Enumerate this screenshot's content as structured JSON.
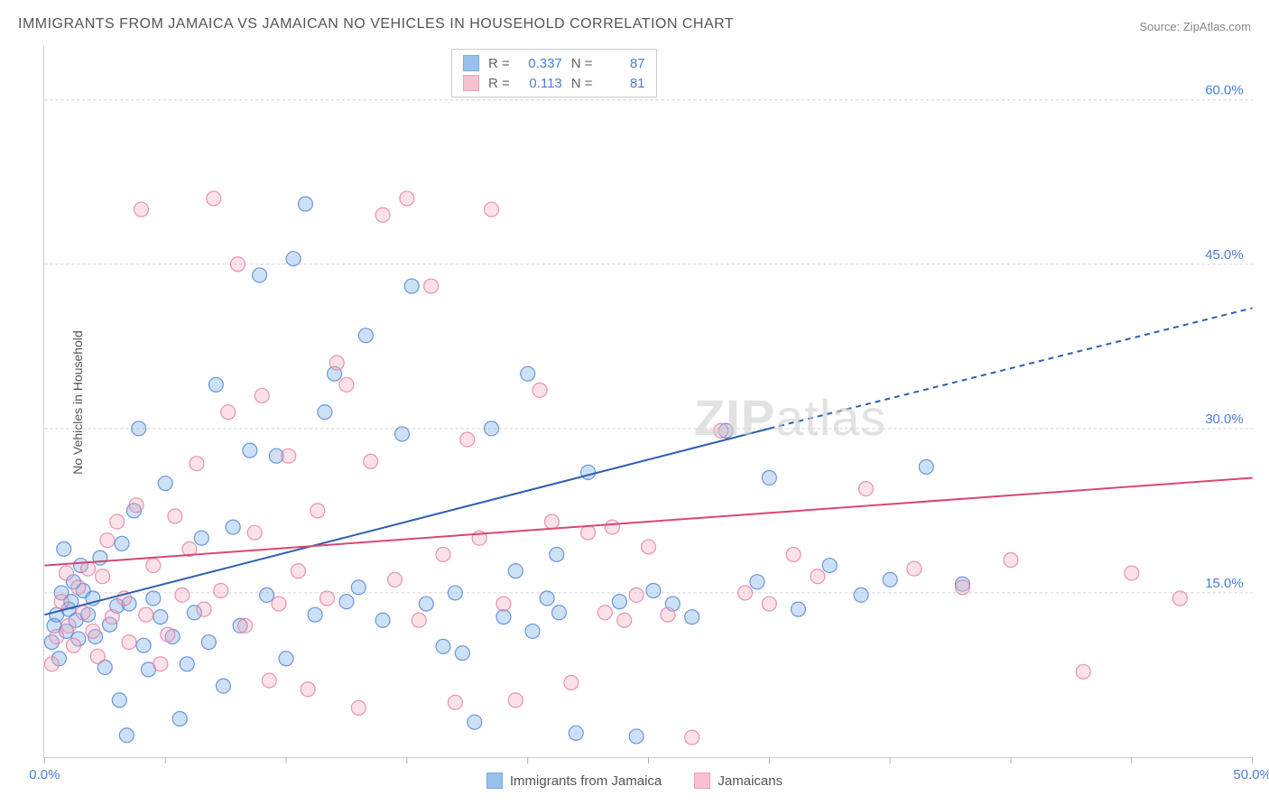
{
  "title": "IMMIGRANTS FROM JAMAICA VS JAMAICAN NO VEHICLES IN HOUSEHOLD CORRELATION CHART",
  "source_prefix": "Source: ",
  "source_name": "ZipAtlas.com",
  "ylabel": "No Vehicles in Household",
  "watermark_bold": "ZIP",
  "watermark_rest": "atlas",
  "chart": {
    "type": "scatter",
    "xlim": [
      0,
      50
    ],
    "ylim": [
      0,
      65
    ],
    "xtick_step": 5,
    "xtick_labeled": [
      0,
      50
    ],
    "ytick_step": 15,
    "ytick_labeled": [
      15,
      30,
      45,
      60
    ],
    "background_color": "#ffffff",
    "grid_color": "#d0d0d0",
    "grid_dash": "3,3",
    "tick_color": "#b0b0b0",
    "axis_label_color": "#4a7fd8",
    "axis_label_fontsize": 15,
    "title_color": "#555555",
    "title_fontsize": 16,
    "marker_radius": 8,
    "marker_fill_opacity": 0.35,
    "marker_stroke_width": 1.2,
    "trend_line_width": 2
  },
  "series": [
    {
      "id": "immigrants",
      "label": "Immigrants from Jamaica",
      "color": "#6fa8e6",
      "stroke": "#4a7fd8",
      "line_color": "#2e5fb0",
      "R": "0.337",
      "N": "87",
      "trend": {
        "x1": 0,
        "y1": 13,
        "x2_solid": 30,
        "y2_solid": 30,
        "x2_dash": 50,
        "y2_dash": 41
      },
      "points": [
        [
          0.3,
          10.5
        ],
        [
          0.4,
          12
        ],
        [
          0.5,
          13
        ],
        [
          0.6,
          9
        ],
        [
          0.7,
          15
        ],
        [
          0.8,
          19
        ],
        [
          0.9,
          11.5
        ],
        [
          1.0,
          13.5
        ],
        [
          1.1,
          14.2
        ],
        [
          1.2,
          16
        ],
        [
          1.3,
          12.5
        ],
        [
          1.4,
          10.8
        ],
        [
          1.5,
          17.5
        ],
        [
          1.6,
          15.2
        ],
        [
          1.8,
          13
        ],
        [
          2.0,
          14.5
        ],
        [
          2.1,
          11
        ],
        [
          2.3,
          18.2
        ],
        [
          2.5,
          8.2
        ],
        [
          2.7,
          12.1
        ],
        [
          3.0,
          13.8
        ],
        [
          3.1,
          5.2
        ],
        [
          3.2,
          19.5
        ],
        [
          3.4,
          2.0
        ],
        [
          3.5,
          14
        ],
        [
          3.7,
          22.5
        ],
        [
          3.9,
          30
        ],
        [
          4.1,
          10.2
        ],
        [
          4.3,
          8
        ],
        [
          4.5,
          14.5
        ],
        [
          4.8,
          12.8
        ],
        [
          5.0,
          25
        ],
        [
          5.3,
          11
        ],
        [
          5.6,
          3.5
        ],
        [
          5.9,
          8.5
        ],
        [
          6.2,
          13.2
        ],
        [
          6.5,
          20
        ],
        [
          6.8,
          10.5
        ],
        [
          7.1,
          34
        ],
        [
          7.4,
          6.5
        ],
        [
          7.8,
          21
        ],
        [
          8.1,
          12
        ],
        [
          8.5,
          28
        ],
        [
          8.9,
          44
        ],
        [
          9.2,
          14.8
        ],
        [
          9.6,
          27.5
        ],
        [
          10.0,
          9
        ],
        [
          10.3,
          45.5
        ],
        [
          10.8,
          50.5
        ],
        [
          11.2,
          13
        ],
        [
          11.6,
          31.5
        ],
        [
          12.0,
          35
        ],
        [
          12.5,
          14.2
        ],
        [
          13.0,
          15.5
        ],
        [
          13.3,
          38.5
        ],
        [
          14.0,
          12.5
        ],
        [
          14.8,
          29.5
        ],
        [
          15.2,
          43
        ],
        [
          15.8,
          14
        ],
        [
          16.5,
          10.1
        ],
        [
          17.0,
          15
        ],
        [
          17.3,
          9.5
        ],
        [
          17.8,
          3.2
        ],
        [
          18.5,
          30
        ],
        [
          19.0,
          12.8
        ],
        [
          19.5,
          17
        ],
        [
          20.0,
          35
        ],
        [
          20.2,
          11.5
        ],
        [
          20.8,
          14.5
        ],
        [
          21.2,
          18.5
        ],
        [
          21.3,
          13.2
        ],
        [
          22.0,
          2.2
        ],
        [
          22.5,
          26
        ],
        [
          23.8,
          14.2
        ],
        [
          24.5,
          1.9
        ],
        [
          25.2,
          15.2
        ],
        [
          26.0,
          14
        ],
        [
          26.8,
          12.8
        ],
        [
          28.2,
          29.8
        ],
        [
          29.5,
          16
        ],
        [
          30.0,
          25.5
        ],
        [
          31.2,
          13.5
        ],
        [
          32.5,
          17.5
        ],
        [
          33.8,
          14.8
        ],
        [
          35.0,
          16.2
        ],
        [
          36.5,
          26.5
        ],
        [
          38.0,
          15.8
        ]
      ]
    },
    {
      "id": "jamaicans",
      "label": "Jamaicans",
      "color": "#f4a8bd",
      "stroke": "#e67a9c",
      "line_color": "#d8486f",
      "R": "0.113",
      "N": "81",
      "trend": {
        "x1": 0,
        "y1": 17.5,
        "x2_solid": 50,
        "y2_solid": 25.5,
        "x2_dash": 50,
        "y2_dash": 25.5
      },
      "points": [
        [
          0.3,
          8.5
        ],
        [
          0.5,
          11
        ],
        [
          0.7,
          14.2
        ],
        [
          0.9,
          16.8
        ],
        [
          1.0,
          12
        ],
        [
          1.2,
          10.2
        ],
        [
          1.4,
          15.5
        ],
        [
          1.6,
          13.2
        ],
        [
          1.8,
          17.2
        ],
        [
          2.0,
          11.5
        ],
        [
          2.2,
          9.2
        ],
        [
          2.4,
          16.5
        ],
        [
          2.6,
          19.8
        ],
        [
          2.8,
          12.8
        ],
        [
          3.0,
          21.5
        ],
        [
          3.3,
          14.5
        ],
        [
          3.5,
          10.5
        ],
        [
          3.8,
          23
        ],
        [
          4.0,
          50
        ],
        [
          4.2,
          13
        ],
        [
          4.5,
          17.5
        ],
        [
          4.8,
          8.5
        ],
        [
          5.1,
          11.2
        ],
        [
          5.4,
          22
        ],
        [
          5.7,
          14.8
        ],
        [
          6.0,
          19
        ],
        [
          6.3,
          26.8
        ],
        [
          6.6,
          13.5
        ],
        [
          7.0,
          51
        ],
        [
          7.3,
          15.2
        ],
        [
          7.6,
          31.5
        ],
        [
          8.0,
          45
        ],
        [
          8.3,
          12
        ],
        [
          8.7,
          20.5
        ],
        [
          9.0,
          33
        ],
        [
          9.3,
          7
        ],
        [
          9.7,
          14
        ],
        [
          10.1,
          27.5
        ],
        [
          10.5,
          17
        ],
        [
          10.9,
          6.2
        ],
        [
          11.3,
          22.5
        ],
        [
          11.7,
          14.5
        ],
        [
          12.1,
          36
        ],
        [
          12.5,
          34
        ],
        [
          13.0,
          4.5
        ],
        [
          13.5,
          27
        ],
        [
          14.0,
          49.5
        ],
        [
          14.5,
          16.2
        ],
        [
          15.0,
          51
        ],
        [
          15.5,
          12.5
        ],
        [
          16.0,
          43
        ],
        [
          16.5,
          18.5
        ],
        [
          17.0,
          5
        ],
        [
          17.5,
          29
        ],
        [
          18.0,
          20
        ],
        [
          18.5,
          50
        ],
        [
          19.0,
          14
        ],
        [
          19.5,
          5.2
        ],
        [
          20.5,
          33.5
        ],
        [
          21.0,
          21.5
        ],
        [
          21.8,
          6.8
        ],
        [
          22.5,
          20.5
        ],
        [
          23.2,
          13.2
        ],
        [
          23.5,
          21
        ],
        [
          24.0,
          12.5
        ],
        [
          24.5,
          14.8
        ],
        [
          25.0,
          19.2
        ],
        [
          25.8,
          13
        ],
        [
          26.8,
          1.8
        ],
        [
          28.0,
          29.8
        ],
        [
          29.0,
          15
        ],
        [
          30.0,
          14
        ],
        [
          31.0,
          18.5
        ],
        [
          32.0,
          16.5
        ],
        [
          34.0,
          24.5
        ],
        [
          36.0,
          17.2
        ],
        [
          38.0,
          15.5
        ],
        [
          40.0,
          18
        ],
        [
          43.0,
          7.8
        ],
        [
          45.0,
          16.8
        ],
        [
          47.0,
          14.5
        ]
      ]
    }
  ],
  "stats_box": {
    "r_label": "R =",
    "n_label": "N ="
  },
  "bottom_legend": {}
}
